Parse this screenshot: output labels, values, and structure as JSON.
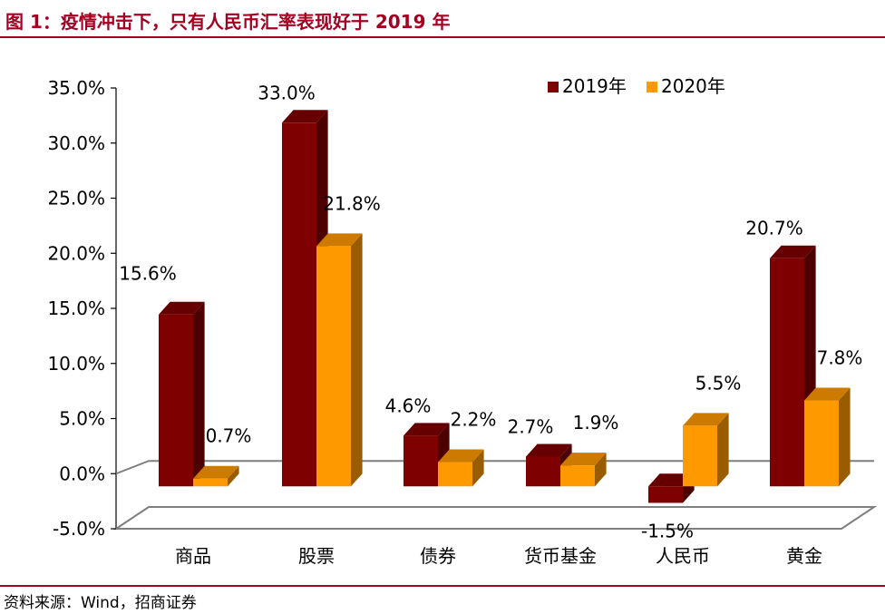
{
  "figure": {
    "title": "图 1：疫情冲击下，只有人民币汇率表现好于 2019 年",
    "source": "资料来源：Wind，招商证券"
  },
  "colors": {
    "series_2019": "#7f0000",
    "series_2020": "#ff9900",
    "accent_rule": "#a50021"
  },
  "chart_data": {
    "type": "bar",
    "categories": [
      "商品",
      "股票",
      "债券",
      "货币基金",
      "人民币",
      "黄金"
    ],
    "series": [
      {
        "name": "2019年",
        "values": [
          15.6,
          33.0,
          4.6,
          2.7,
          -1.5,
          20.7
        ],
        "labels": [
          "15.6%",
          "33.0%",
          "4.6%",
          "2.7%",
          "-1.5%",
          "20.7%"
        ]
      },
      {
        "name": "2020年",
        "values": [
          0.7,
          21.8,
          2.2,
          1.9,
          5.5,
          7.8
        ],
        "labels": [
          "0.7%",
          "21.8%",
          "2.2%",
          "1.9%",
          "5.5%",
          "7.8%"
        ]
      }
    ],
    "ylim": [
      -5.0,
      35.0
    ],
    "yticks": [
      "-5.0%",
      "0.0%",
      "5.0%",
      "10.0%",
      "15.0%",
      "20.0%",
      "25.0%",
      "30.0%",
      "35.0%"
    ],
    "legend_position": "top-right",
    "grid": false,
    "style": "3d-clustered"
  }
}
